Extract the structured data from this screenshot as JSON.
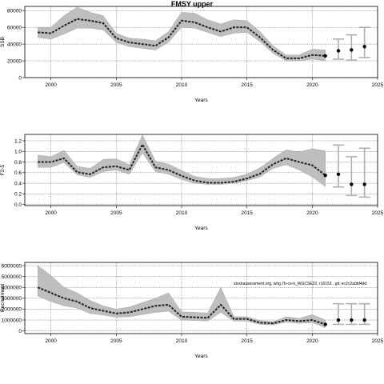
{
  "title": "FMSY upper",
  "chart_data": [
    {
      "type": "line",
      "xlabel": "Years",
      "ylabel": "SSB",
      "xlim": [
        1998,
        2025
      ],
      "ylim": [
        0,
        85000
      ],
      "xticks": [
        "2000",
        "2005",
        "2010",
        "2015",
        "2020",
        "2025"
      ],
      "yticks": [
        "0",
        "20000",
        "40000",
        "60000",
        "80000"
      ],
      "grid": true,
      "x": [
        1999,
        2000,
        2001,
        2002,
        2003,
        2004,
        2005,
        2006,
        2007,
        2008,
        2009,
        2010,
        2011,
        2012,
        2013,
        2014,
        2015,
        2016,
        2017,
        2018,
        2019,
        2020,
        2021
      ],
      "median": [
        54000,
        53000,
        62000,
        70000,
        68000,
        65000,
        47000,
        42000,
        40000,
        38000,
        48000,
        68000,
        66000,
        60000,
        55000,
        60000,
        60000,
        48000,
        33000,
        23000,
        23000,
        27000,
        26000
      ],
      "lower": [
        48000,
        46000,
        52000,
        59000,
        59000,
        57000,
        42000,
        37000,
        35000,
        33000,
        42000,
        60000,
        59000,
        54000,
        49000,
        53000,
        54000,
        43000,
        29000,
        20000,
        20000,
        22000,
        20000
      ],
      "upper": [
        60000,
        60000,
        74000,
        84000,
        78000,
        74000,
        53000,
        47000,
        46000,
        44000,
        55000,
        78000,
        77000,
        69000,
        64000,
        69000,
        68000,
        55000,
        38000,
        27000,
        27000,
        34000,
        33000
      ],
      "projection": {
        "x": [
          2022,
          2023,
          2024
        ],
        "median": [
          32000,
          33000,
          37000
        ],
        "lower": [
          22000,
          21000,
          24000
        ],
        "upper": [
          46000,
          51000,
          60000
        ]
      },
      "colors": {
        "band": "#bebebe",
        "line": "#222222",
        "projection_bar": "#b0b0b0"
      }
    },
    {
      "type": "line",
      "xlabel": "Years",
      "ylabel": "F2-5",
      "xlim": [
        1998,
        2025
      ],
      "ylim": [
        -0.02,
        1.32
      ],
      "xticks": [
        "2000",
        "2005",
        "2010",
        "2015",
        "2020",
        "2025"
      ],
      "yticks": [
        "0.0",
        "0.2",
        "0.4",
        "0.6",
        "0.8",
        "1.0",
        "1.2"
      ],
      "grid": true,
      "x": [
        1999,
        2000,
        2001,
        2002,
        2003,
        2004,
        2005,
        2006,
        2007,
        2008,
        2009,
        2010,
        2011,
        2012,
        2013,
        2014,
        2015,
        2016,
        2017,
        2018,
        2019,
        2020,
        2021
      ],
      "median": [
        0.8,
        0.8,
        0.87,
        0.61,
        0.57,
        0.7,
        0.72,
        0.65,
        1.13,
        0.7,
        0.65,
        0.54,
        0.45,
        0.41,
        0.41,
        0.43,
        0.49,
        0.58,
        0.76,
        0.87,
        0.8,
        0.74,
        0.55
      ],
      "lower": [
        0.7,
        0.7,
        0.79,
        0.56,
        0.51,
        0.62,
        0.65,
        0.57,
        0.97,
        0.62,
        0.57,
        0.47,
        0.4,
        0.38,
        0.38,
        0.4,
        0.45,
        0.52,
        0.68,
        0.75,
        0.65,
        0.52,
        0.34
      ],
      "upper": [
        0.93,
        0.9,
        1.02,
        0.72,
        0.68,
        0.85,
        0.86,
        0.75,
        1.31,
        0.82,
        0.76,
        0.64,
        0.53,
        0.49,
        0.49,
        0.51,
        0.57,
        0.69,
        0.87,
        1.03,
        0.99,
        1.05,
        1.01
      ],
      "projection": {
        "x": [
          2022,
          2023,
          2024
        ],
        "median": [
          0.57,
          0.38,
          0.38
        ],
        "lower": [
          0.33,
          0.17,
          0.14
        ],
        "upper": [
          1.12,
          0.9,
          1.06
        ]
      },
      "colors": {
        "band": "#bebebe",
        "line": "#222222",
        "projection_bar": "#b0b0b0"
      }
    },
    {
      "type": "line",
      "xlabel": "Years",
      "ylabel": "Recruitment",
      "xlim": [
        1998,
        2025
      ],
      "ylim": [
        -250000,
        6300000
      ],
      "xticks": [
        "2000",
        "2005",
        "2010",
        "2015",
        "2020",
        "2025"
      ],
      "yticks": [
        "0",
        "1000000",
        "2000000",
        "3000000",
        "4000000",
        "5000000",
        "6000000"
      ],
      "grid": true,
      "x": [
        1999,
        2000,
        2001,
        2002,
        2003,
        2004,
        2005,
        2006,
        2007,
        2008,
        2009,
        2010,
        2011,
        2012,
        2013,
        2014,
        2015,
        2016,
        2017,
        2018,
        2019,
        2020,
        2021
      ],
      "median": [
        4000000,
        3500000,
        3000000,
        2700000,
        2100000,
        1850000,
        1600000,
        1700000,
        2000000,
        2300000,
        2400000,
        1300000,
        1250000,
        1200000,
        2400000,
        1100000,
        1100000,
        750000,
        700000,
        1000000,
        900000,
        1000000,
        600000
      ],
      "lower": [
        3200000,
        2700000,
        2300000,
        2100000,
        1600000,
        1450000,
        1250000,
        1300000,
        1500000,
        1700000,
        1800000,
        1000000,
        950000,
        900000,
        1700000,
        900000,
        900000,
        600000,
        550000,
        800000,
        700000,
        750000,
        300000
      ],
      "upper": [
        6000000,
        5100000,
        4000000,
        3500000,
        2800000,
        2300000,
        2000000,
        2200000,
        2600000,
        3000000,
        3500000,
        1750000,
        1700000,
        1650000,
        4000000,
        1300000,
        1300000,
        950000,
        850000,
        1300000,
        1150000,
        1500000,
        1000000
      ],
      "projection": {
        "x": [
          2022,
          2023,
          2024
        ],
        "median": [
          1000000,
          1000000,
          1000000
        ],
        "lower": [
          600000,
          600000,
          600000
        ],
        "upper": [
          2500000,
          2500000,
          2500000
        ]
      },
      "annotation": "stockassessment.org, whg.7b-ce-k_WGCSE22, r16153 , git: ec2c2a0bf4dd",
      "colors": {
        "band": "#bebebe",
        "line": "#222222",
        "projection_bar": "#b0b0b0"
      }
    }
  ]
}
